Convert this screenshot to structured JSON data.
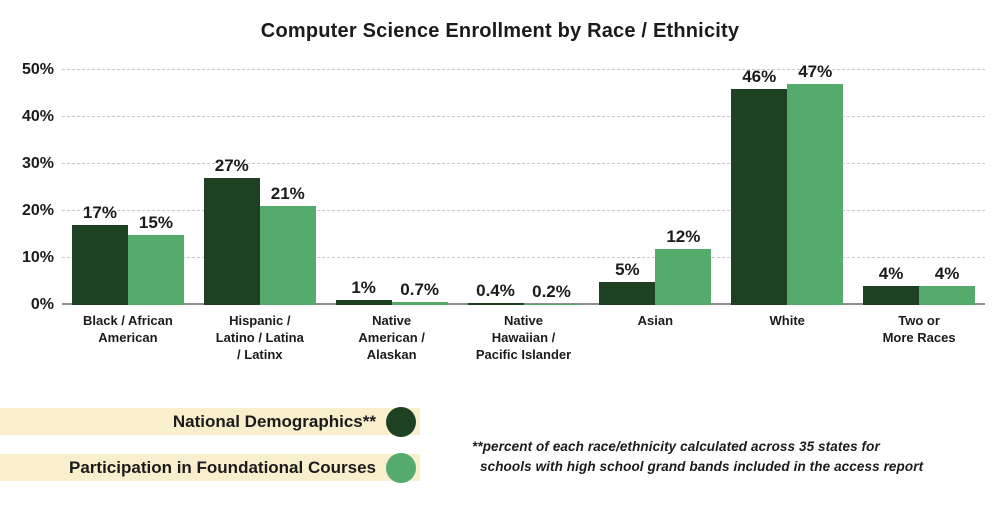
{
  "title": "Computer Science Enrollment by Race / Ethnicity",
  "chart_data": {
    "type": "bar",
    "title": "Computer Science Enrollment by Race / Ethnicity",
    "categories": [
      "Black / African\nAmerican",
      "Hispanic /\nLatino / Latina\n/ Latinx",
      "Native\nAmerican /\nAlaskan",
      "Native\nHawaiian /\nPacific Islander",
      "Asian",
      "White",
      "Two or\nMore Races"
    ],
    "series": [
      {
        "name": "National Demographics**",
        "color": "#1e4124",
        "values": [
          17,
          27,
          1,
          0.4,
          5,
          46,
          4
        ],
        "value_labels": [
          "17%",
          "27%",
          "1%",
          "0.4%",
          "5%",
          "46%",
          "4%"
        ]
      },
      {
        "name": "Participation in Foundational Courses",
        "color": "#55ab6c",
        "values": [
          15,
          21,
          0.7,
          0.2,
          12,
          47,
          4
        ],
        "value_labels": [
          "15%",
          "21%",
          "0.7%",
          "0.2%",
          "12%",
          "47%",
          "4%"
        ]
      }
    ],
    "y_ticks": [
      "0%",
      "10%",
      "20%",
      "30%",
      "40%",
      "50%"
    ],
    "ylim": [
      0,
      50
    ],
    "grid": "horizontal-dashed",
    "legend_position": "bottom-left"
  },
  "legend": {
    "band_color": "#f9efcd",
    "items": [
      {
        "label": "National Demographics**",
        "color": "#1e4124"
      },
      {
        "label": "Participation in Foundational Courses",
        "color": "#55ab6c"
      }
    ]
  },
  "footnote": {
    "line1": "**percent of each race/ethnicity calculated across 35 states for",
    "line2": "schools with high school grand bands included in the access report"
  }
}
